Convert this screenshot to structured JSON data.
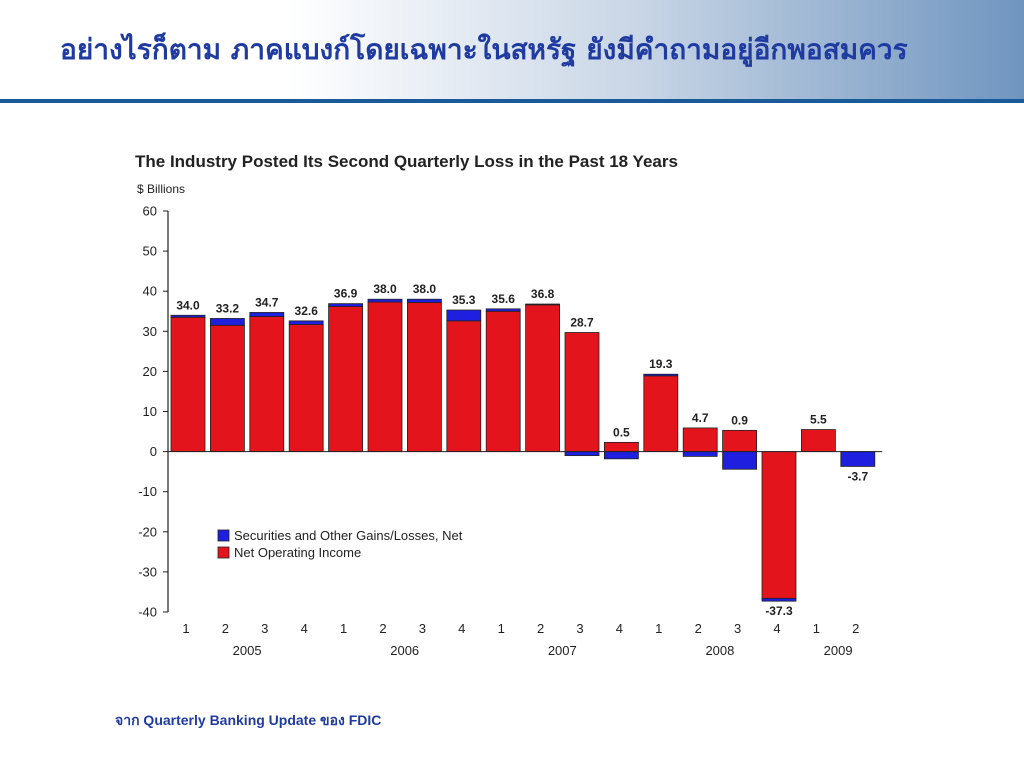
{
  "slide": {
    "title": "อย่างไรก็ตาม ภาคแบงก์โดยเฉพาะในสหรัฐ ยังมีคำถามอยู่อีกพอสมควร",
    "source": "จาก Quarterly Banking Update ของ FDIC",
    "title_color": "#1f3aa0",
    "rule_color": "#1a5a99"
  },
  "chart_data": {
    "type": "bar",
    "stacked": true,
    "title": "The Industry Posted Its Second Quarterly Loss in the Past 18 Years",
    "ylabel": "$ Billions",
    "ylim": [
      -40,
      60
    ],
    "yticks": [
      60,
      50,
      40,
      30,
      20,
      10,
      0,
      -10,
      -20,
      -30,
      -40
    ],
    "categories": [
      "1",
      "2",
      "3",
      "4",
      "1",
      "2",
      "3",
      "4",
      "1",
      "2",
      "3",
      "4",
      "1",
      "2",
      "3",
      "4",
      "1",
      "2"
    ],
    "groups": [
      {
        "label": "2005",
        "quarters": 4
      },
      {
        "label": "2006",
        "quarters": 4
      },
      {
        "label": "2007",
        "quarters": 4
      },
      {
        "label": "2008",
        "quarters": 4
      },
      {
        "label": "2009",
        "quarters": 2
      }
    ],
    "series": [
      {
        "name": "Net Operating Income",
        "color": "#e3141b",
        "values": [
          33.5,
          31.5,
          33.7,
          31.7,
          36.2,
          37.3,
          37.2,
          32.6,
          35.0,
          36.6,
          29.7,
          2.3,
          18.9,
          5.9,
          5.3,
          -36.6,
          5.5,
          0.0
        ]
      },
      {
        "name": "Securities and Other Gains/Losses, Net",
        "color": "#1f1fe0",
        "values": [
          0.5,
          1.7,
          1.0,
          0.9,
          0.7,
          0.7,
          0.8,
          2.7,
          0.6,
          0.2,
          -1.0,
          -1.8,
          0.4,
          -1.2,
          -4.4,
          -0.7,
          0.0,
          -3.7
        ]
      }
    ],
    "totals": [
      34.0,
      33.2,
      34.7,
      32.6,
      36.9,
      38.0,
      38.0,
      35.3,
      35.6,
      36.8,
      28.7,
      0.5,
      19.3,
      4.7,
      0.9,
      -37.3,
      5.5,
      -3.7
    ],
    "legend_position": "lower-left",
    "grid": false
  }
}
